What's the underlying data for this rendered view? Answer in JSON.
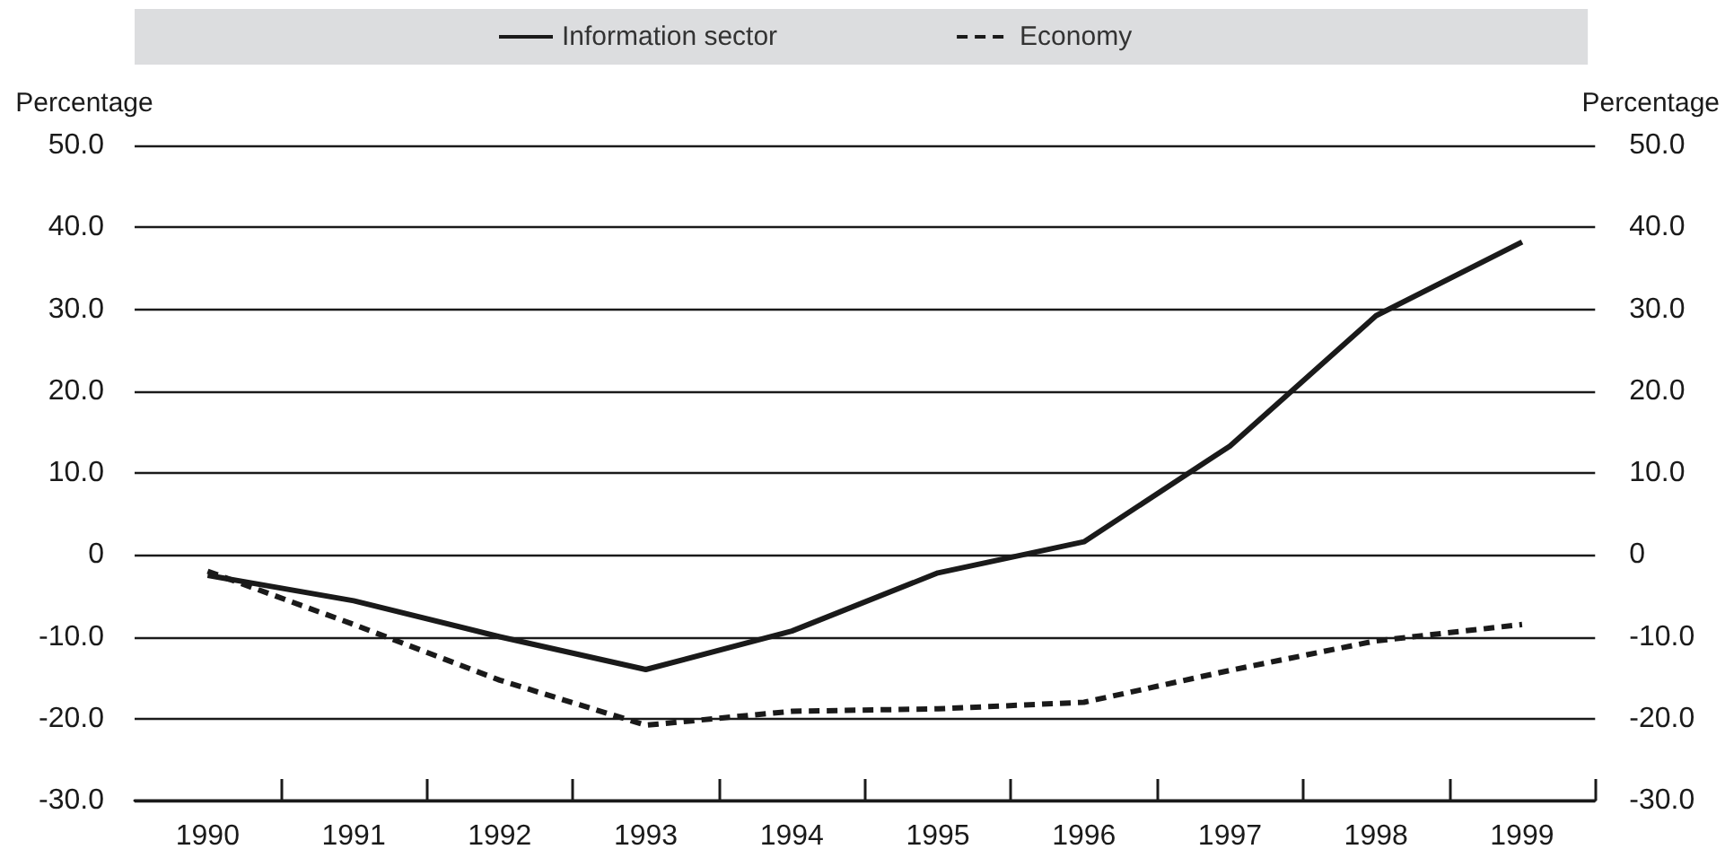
{
  "chart_data": {
    "type": "line",
    "legend": "top",
    "grid": "y",
    "marker": "none",
    "categories": [
      "1990",
      "1991",
      "1992",
      "1993",
      "1994",
      "1995",
      "1996",
      "1997",
      "1998",
      "1999"
    ],
    "series": [
      {
        "name": "Information sector",
        "color": "#1a1a1a",
        "line_style": "solid",
        "values": [
          -2.5,
          -5.6,
          -10.0,
          -14.0,
          -9.3,
          -2.2,
          1.6,
          13.3,
          29.2,
          38.2
        ]
      },
      {
        "name": "Economy",
        "color": "#1a1a1a",
        "line_style": "dashed",
        "values": [
          -2.0,
          -8.5,
          -15.3,
          -20.8,
          -19.1,
          -18.8,
          -18.0,
          -14.1,
          -10.5,
          -8.5
        ]
      }
    ],
    "ylabel": "Percentage",
    "y2label": "Percentage",
    "ylim": [
      -30,
      50
    ],
    "yticks": [
      {
        "value": -30,
        "label": "-30.0"
      },
      {
        "value": -20,
        "label": "-20.0"
      },
      {
        "value": -10,
        "label": "-10.0"
      },
      0,
      {
        "value": 10,
        "label": "10.0"
      },
      {
        "value": 20,
        "label": "20.0"
      },
      {
        "value": 30,
        "label": "30.0"
      },
      {
        "value": 40,
        "label": "40.0"
      },
      {
        "value": 50,
        "label": "50.0"
      }
    ],
    "y2lim": [
      -30,
      50
    ],
    "y2ticks": [
      {
        "value": -30,
        "label": "-30.0"
      },
      {
        "value": -20,
        "label": "-20.0"
      },
      {
        "value": -10,
        "label": "-10.0"
      },
      0,
      {
        "value": 10,
        "label": "10.0"
      },
      {
        "value": 20,
        "label": "20.0"
      },
      {
        "value": 30,
        "label": "30.0"
      },
      {
        "value": 40,
        "label": "40.0"
      },
      {
        "value": 50,
        "label": "50.0"
      }
    ]
  }
}
